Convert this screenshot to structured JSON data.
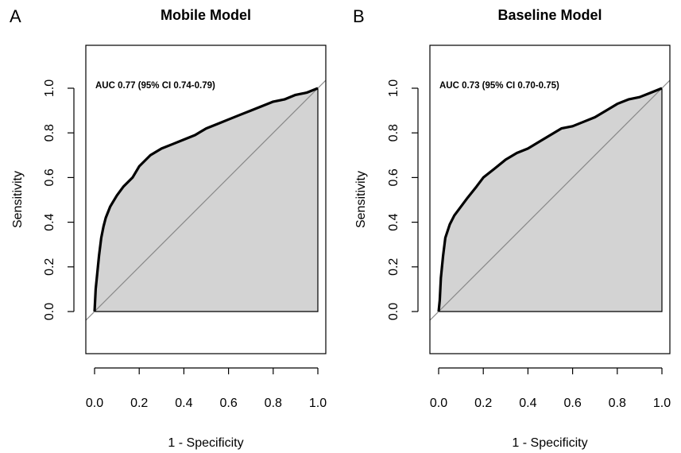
{
  "chart_data": [
    {
      "type": "line",
      "panel": "A",
      "title": "Mobile Model",
      "xlabel": "1 - Specificity",
      "ylabel": "Sensitivity",
      "annotation": "AUC 0.77 (95% CI 0.74-0.79)",
      "xlim": [
        0,
        1
      ],
      "ylim": [
        0,
        1
      ],
      "x_ticks": [
        "0.0",
        "0.2",
        "0.4",
        "0.6",
        "0.8",
        "1.0"
      ],
      "y_ticks": [
        "0.0",
        "0.2",
        "0.4",
        "0.6",
        "0.8",
        "1.0"
      ],
      "grid": false,
      "fill_color": "#d3d3d3",
      "reference_line": "diagonal",
      "x": [
        0,
        0.005,
        0.01,
        0.02,
        0.03,
        0.04,
        0.05,
        0.07,
        0.1,
        0.13,
        0.17,
        0.2,
        0.25,
        0.3,
        0.35,
        0.4,
        0.45,
        0.5,
        0.55,
        0.6,
        0.65,
        0.7,
        0.75,
        0.8,
        0.85,
        0.9,
        0.95,
        1.0
      ],
      "y": [
        0,
        0.1,
        0.15,
        0.25,
        0.33,
        0.38,
        0.42,
        0.47,
        0.52,
        0.56,
        0.6,
        0.65,
        0.7,
        0.73,
        0.75,
        0.77,
        0.79,
        0.82,
        0.84,
        0.86,
        0.88,
        0.9,
        0.92,
        0.94,
        0.95,
        0.97,
        0.98,
        1.0
      ]
    },
    {
      "type": "line",
      "panel": "B",
      "title": "Baseline Model",
      "xlabel": "1 - Specificity",
      "ylabel": "Sensitivity",
      "annotation": "AUC 0.73 (95% CI 0.70-0.75)",
      "xlim": [
        0,
        1
      ],
      "ylim": [
        0,
        1
      ],
      "x_ticks": [
        "0.0",
        "0.2",
        "0.4",
        "0.6",
        "0.8",
        "1.0"
      ],
      "y_ticks": [
        "0.0",
        "0.2",
        "0.4",
        "0.6",
        "0.8",
        "1.0"
      ],
      "grid": false,
      "fill_color": "#d3d3d3",
      "reference_line": "diagonal",
      "x": [
        0,
        0.005,
        0.01,
        0.02,
        0.03,
        0.05,
        0.07,
        0.1,
        0.13,
        0.17,
        0.2,
        0.25,
        0.3,
        0.35,
        0.4,
        0.45,
        0.5,
        0.55,
        0.6,
        0.65,
        0.7,
        0.75,
        0.8,
        0.85,
        0.9,
        0.95,
        1.0
      ],
      "y": [
        0,
        0.05,
        0.15,
        0.25,
        0.33,
        0.39,
        0.43,
        0.47,
        0.51,
        0.56,
        0.6,
        0.64,
        0.68,
        0.71,
        0.73,
        0.76,
        0.79,
        0.82,
        0.83,
        0.85,
        0.87,
        0.9,
        0.93,
        0.95,
        0.96,
        0.98,
        1.0
      ]
    }
  ]
}
